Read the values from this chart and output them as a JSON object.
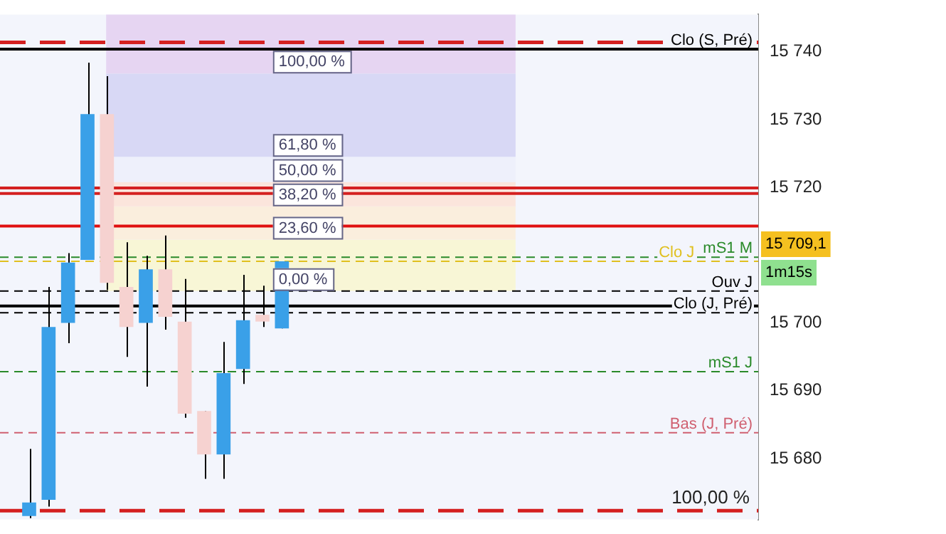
{
  "chart_data": {
    "type": "candlestick",
    "categories": [
      null,
      null,
      null,
      null,
      null,
      null,
      null,
      null,
      null,
      null,
      null,
      null,
      null,
      null,
      null,
      null,
      null,
      null,
      null,
      null,
      null,
      null,
      null,
      null,
      null,
      null,
      null,
      null,
      null,
      null,
      null,
      null,
      null,
      null,
      null,
      null,
      null,
      null,
      null
    ],
    "ohlc": [
      null,
      [
        15671.5,
        15681.4,
        15671.2,
        15673.5
      ],
      [
        15673.9,
        15705.3,
        15672.9,
        15699.4
      ],
      [
        15700.0,
        15710.3,
        15697.0,
        15708.9
      ],
      [
        15709.3,
        15738.4,
        15709.3,
        15730.8
      ],
      [
        15730.8,
        15736.4,
        15704.9,
        15705.9
      ],
      [
        15705.3,
        15711.9,
        15695.0,
        15699.4
      ],
      [
        15700.0,
        15709.9,
        15690.6,
        15707.9
      ],
      [
        15707.9,
        15712.9,
        15699.0,
        15700.9
      ],
      [
        15700.2,
        15706.5,
        15686.0,
        15686.6
      ],
      [
        15687.0,
        15687.0,
        15677.0,
        15680.6
      ],
      [
        15680.6,
        15697.2,
        15677.0,
        15692.6
      ],
      [
        15693.2,
        15707.1,
        15691.0,
        15700.4
      ],
      [
        15701.2,
        15705.5,
        15699.4,
        15700.2
      ],
      [
        15699.2,
        15709.1,
        15699.2,
        15709.1
      ],
      null,
      null,
      null,
      null,
      null,
      null,
      null,
      null,
      null,
      null,
      null,
      null,
      null,
      null,
      null,
      null,
      null,
      null,
      null,
      null,
      null,
      null,
      null,
      null
    ],
    "colors": [
      null,
      "#3aa0e8",
      "#3aa0e8",
      "#3aa0e8",
      "#3aa0e8",
      "#f6d2d0",
      "#f6d2d0",
      "#3aa0e8",
      "#f6d2d0",
      "#f6d2d0",
      "#f6d2d0",
      "#3aa0e8",
      "#3aa0e8",
      "#f6d2d0",
      "#3aa0e8",
      null,
      null,
      null,
      null,
      null,
      null,
      null,
      null,
      null,
      null,
      null,
      null,
      null,
      null,
      null,
      null,
      null,
      null,
      null,
      null,
      null,
      null,
      null,
      null
    ],
    "ylim": [
      15671,
      15745.5
    ],
    "yticks": [
      {
        "value": 15680,
        "label": "15 680"
      },
      {
        "value": 15690,
        "label": "15 690"
      },
      {
        "value": 15700,
        "label": "15 700"
      },
      {
        "value": 15710,
        "label": null
      },
      {
        "value": 15720,
        "label": "15 720"
      },
      {
        "value": 15730,
        "label": "15 730"
      },
      {
        "value": 15740,
        "label": "15 740"
      }
    ],
    "tick_labels": "y",
    "bands": [
      {
        "axis": "y",
        "from": 15704.7,
        "to": 15712.3,
        "label": "0,00 %",
        "color": "#f8f6d6"
      },
      {
        "axis": "y",
        "from": 15712.3,
        "to": 15717.2,
        "label": "23,60 %",
        "color": "#faeedd"
      },
      {
        "axis": "y",
        "from": 15717.2,
        "to": 15720.8,
        "label": "38,20 %",
        "color": "#fbe5dc"
      },
      {
        "axis": "y",
        "from": 15720.8,
        "to": 15724.5,
        "label": "50,00 %",
        "color": "#eef0fb"
      },
      {
        "axis": "y",
        "from": 15724.5,
        "to": 15736.8,
        "label": "61,80 %",
        "color": "#d8d8f5"
      },
      {
        "axis": "y",
        "from": 15736.8,
        "to": 15745.5,
        "label": "100,00 %",
        "color": "#e6d5f2"
      }
    ],
    "ref_lines": [
      {
        "axis": "y",
        "value": 15741.4,
        "label": null,
        "color": "#d42020",
        "line_style": "dashed"
      },
      {
        "axis": "y",
        "value": 15740.4,
        "label": "Clo (S, Pré)",
        "color": "#000000",
        "line_style": "solid"
      },
      {
        "axis": "y",
        "value": 15719.9,
        "label": null,
        "color": "#d42020",
        "line_style": "solid"
      },
      {
        "axis": "y",
        "value": 15719.1,
        "label": null,
        "color": "#d42020",
        "line_style": "solid"
      },
      {
        "axis": "y",
        "value": 15714.3,
        "label": null,
        "color": "#e01010",
        "line_style": "solid"
      },
      {
        "axis": "y",
        "value": 15709.7,
        "label": "mS1 M",
        "color": "#2a8a2a",
        "line_style": "dashed"
      },
      {
        "axis": "y",
        "value": 15709.1,
        "label": "Clo J",
        "color": "#e0c020",
        "line_style": "dashed"
      },
      {
        "axis": "y",
        "value": 15704.7,
        "label": "Ouv J",
        "color": "#000000",
        "line_style": "dashed"
      },
      {
        "axis": "y",
        "value": 15702.5,
        "label": null,
        "color": "#000000",
        "line_style": "solid"
      },
      {
        "axis": "y",
        "value": 15701.5,
        "label": "Clo (J, Pré)",
        "color": "#000000",
        "line_style": "dashed"
      },
      {
        "axis": "y",
        "value": 15692.8,
        "label": "mS1 J",
        "color": "#2a8a2a",
        "line_style": "dashed"
      },
      {
        "axis": "y",
        "value": 15683.8,
        "label": "Bas (J, Pré)",
        "color": "#d06070",
        "line_style": "dashed"
      },
      {
        "axis": "y",
        "value": 15672.3,
        "label": null,
        "color": "#d42020",
        "line_style": "dashed"
      }
    ],
    "annotations": [
      "15 709,1",
      "1m15s",
      "100,00 %"
    ]
  }
}
